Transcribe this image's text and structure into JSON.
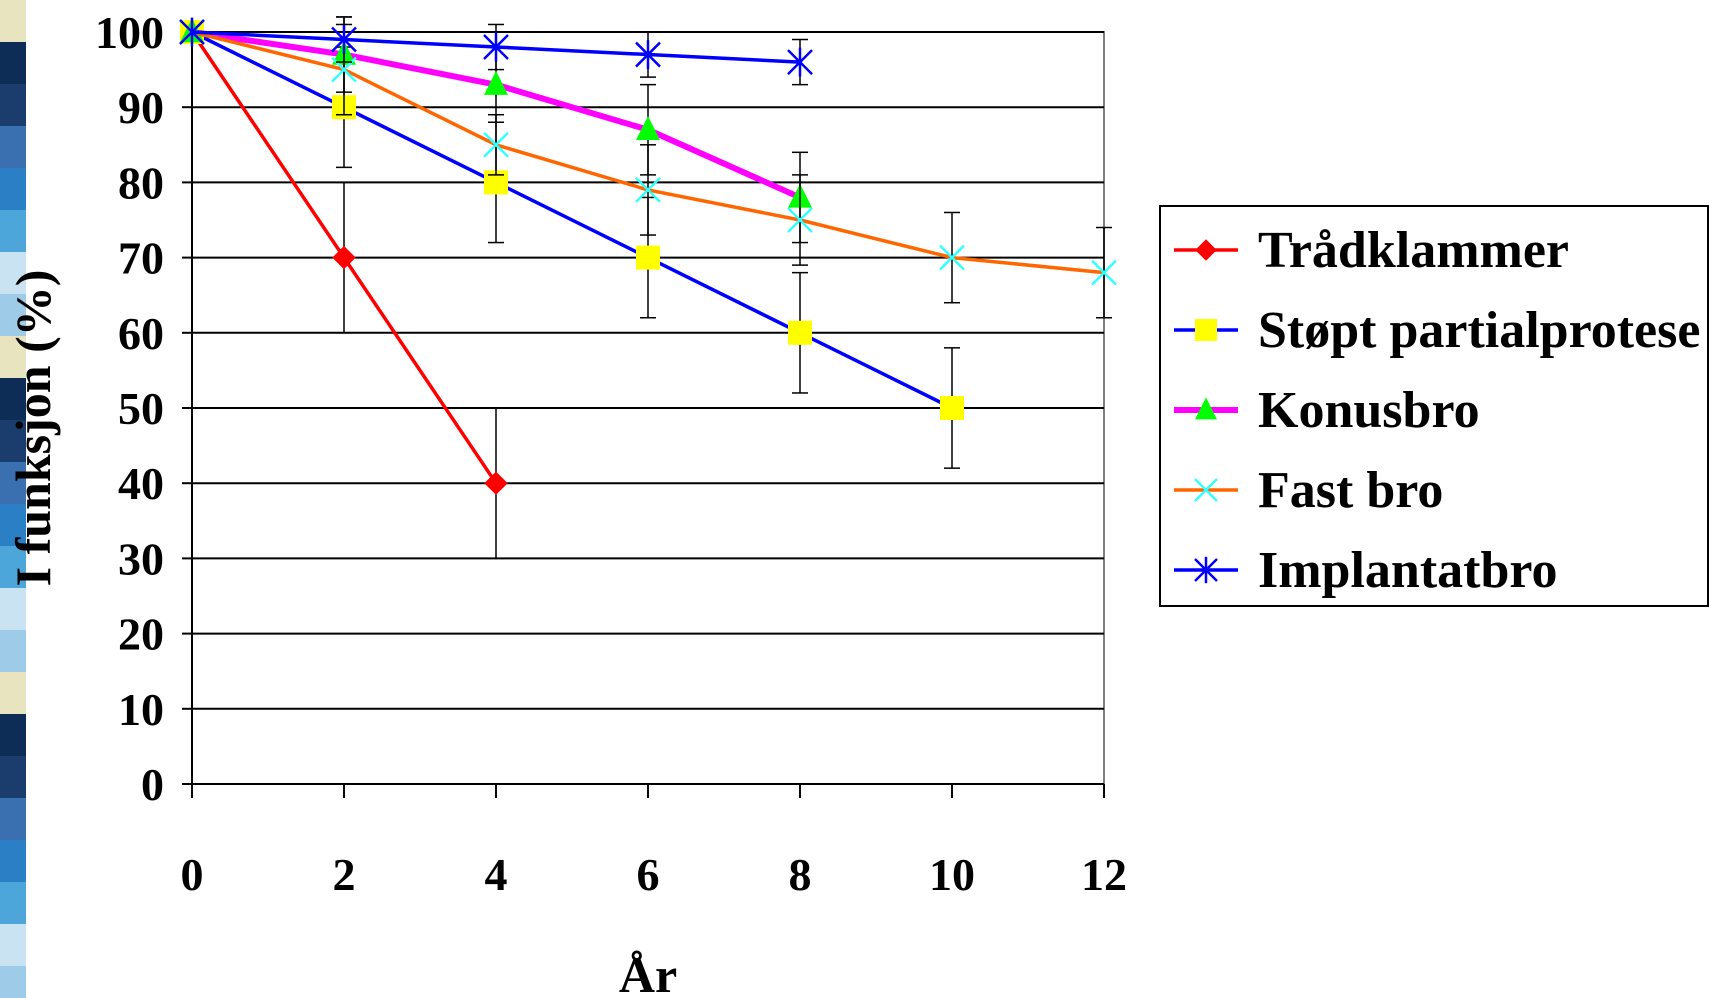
{
  "chart_data": {
    "type": "line",
    "xlabel": "År",
    "ylabel": "I funksjon (%)",
    "x_ticks": [
      "0",
      "2",
      "4",
      "6",
      "8",
      "10",
      "12"
    ],
    "y_ticks": [
      "0",
      "10",
      "20",
      "30",
      "40",
      "50",
      "60",
      "70",
      "80",
      "90",
      "100"
    ],
    "xlim": [
      0,
      12
    ],
    "ylim": [
      0,
      100
    ],
    "grid": "horizontal",
    "legend_position": "right",
    "series": [
      {
        "name": "Trådklammer",
        "color": "#ff0000",
        "marker": "diamond",
        "marker_color": "#ff0000",
        "x": [
          0,
          2,
          4
        ],
        "y": [
          100,
          70,
          40
        ],
        "err_up": [
          0,
          10,
          10
        ],
        "err_down": [
          0,
          10,
          10
        ]
      },
      {
        "name": "Støpt partialprotese",
        "color": "#0000ff",
        "marker": "square",
        "marker_color": "#ffff00",
        "x": [
          0,
          2,
          4,
          6,
          8,
          10
        ],
        "y": [
          100,
          90,
          80,
          70,
          60,
          50
        ],
        "err_up": [
          0,
          8,
          8,
          8,
          8,
          8
        ],
        "err_down": [
          0,
          8,
          8,
          8,
          8,
          8
        ]
      },
      {
        "name": "Konusbro",
        "color": "#ff00ff",
        "marker": "triangle",
        "marker_color": "#00ff00",
        "x": [
          0,
          2,
          4,
          6,
          8
        ],
        "y": [
          100,
          97,
          93,
          87,
          78
        ],
        "err_up": [
          0,
          5,
          5,
          6,
          6
        ],
        "err_down": [
          0,
          5,
          5,
          6,
          6
        ]
      },
      {
        "name": "Fast bro",
        "color": "#ff6600",
        "marker": "x",
        "marker_color": "#33ffff",
        "x": [
          0,
          2,
          4,
          6,
          8,
          10,
          12
        ],
        "y": [
          100,
          95,
          85,
          79,
          75,
          70,
          68
        ],
        "err_up": [
          0,
          6,
          4,
          6,
          6,
          6,
          6
        ],
        "err_down": [
          0,
          6,
          4,
          6,
          6,
          6,
          6
        ]
      },
      {
        "name": "Implantatbro",
        "color": "#0000ff",
        "marker": "star",
        "marker_color": "#0000ff",
        "x": [
          0,
          2,
          4,
          6,
          8
        ],
        "y": [
          100,
          99,
          98,
          97,
          96
        ],
        "err_up": [
          0,
          3,
          3,
          3,
          3
        ],
        "err_down": [
          0,
          3,
          3,
          3,
          3
        ]
      }
    ]
  },
  "decor": {
    "stripe_colors": [
      "#e8e4c0",
      "#4da6d9",
      "#1a3d6e",
      "#9ecbe8",
      "#2b7fc4",
      "#0d2d57",
      "#c9e3f2",
      "#3a6fb0"
    ]
  }
}
